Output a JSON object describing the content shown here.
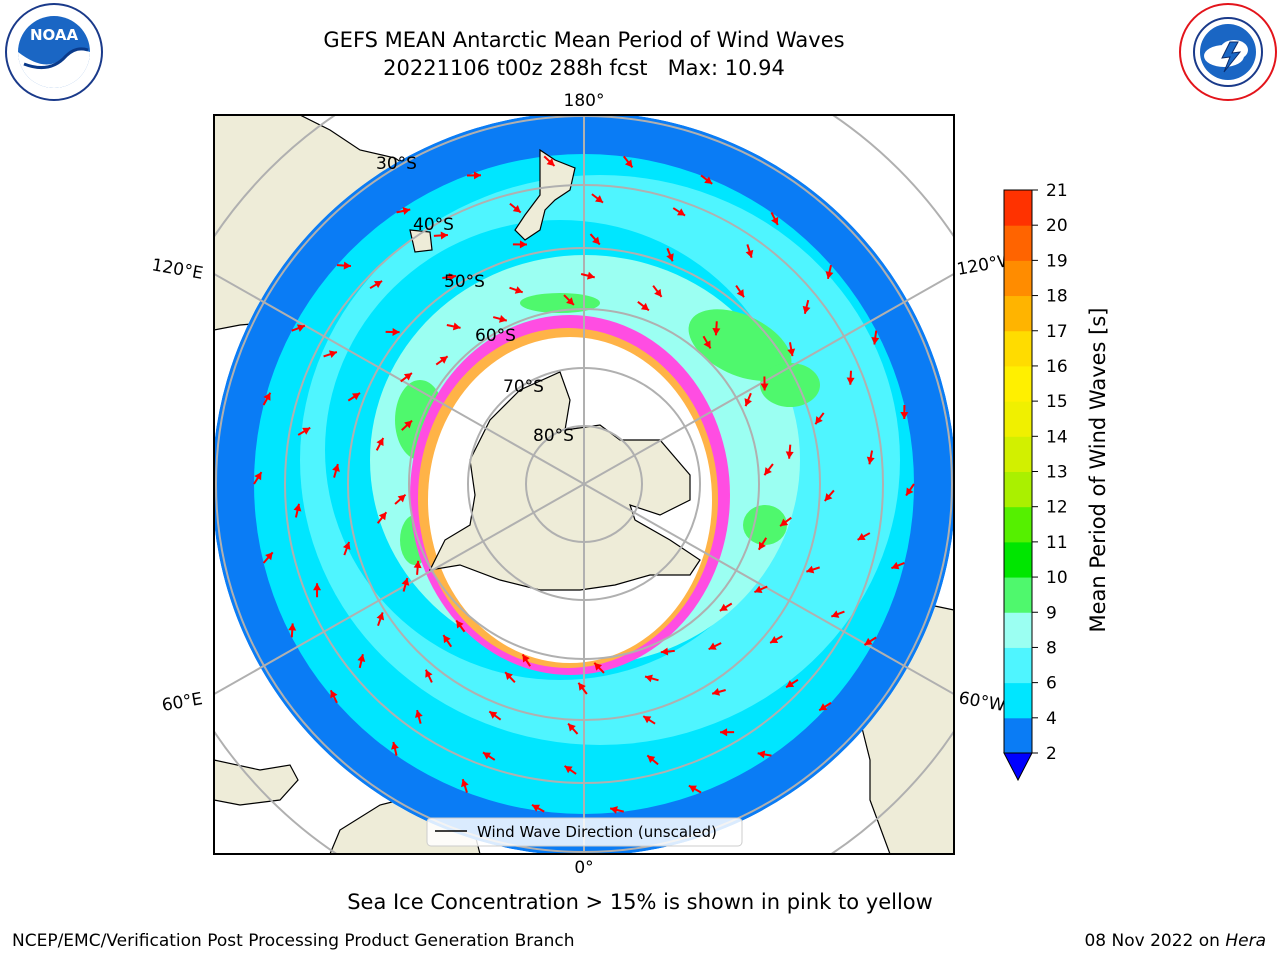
{
  "header": {
    "title_line1": "GEFS MEAN Antarctic Mean Period of Wind Waves",
    "title_line2": "20221106 t00z 288h fcst   Max: 10.94",
    "noaa_logo_text": "NOAA",
    "noaa_logo_ring_text": "NATIONAL OCEANIC AND ATMOSPHERIC ADMINISTRATION · U.S. DEPARTMENT OF COMMERCE",
    "nws_logo_ring_text": "NATIONAL WEATHER SERVICE"
  },
  "map": {
    "projection": "south-polar-stereographic",
    "longitude_labels": {
      "top": "180°",
      "upper_left": "120°E",
      "upper_right": "120°W",
      "lower_left": "60°E",
      "lower_right": "60°W",
      "bottom": "0°"
    },
    "latitude_labels": [
      "30°S",
      "40°S",
      "50°S",
      "60°S",
      "70°S",
      "80°S"
    ],
    "legend_label": "Wind Wave Direction (unscaled)",
    "colors": {
      "land": "#eeecd8",
      "open_ocean": "#00e6ff",
      "band_2_4": "#0a7cf5",
      "band_8_9": "#9bfff2",
      "band_9_10": "#4ff86d",
      "sea_ice_edge": "#ff4de2",
      "sea_ice_edge_yellow": "#ffb347",
      "arrows": "#ff0000",
      "gridlines": "#b0b0b0"
    }
  },
  "colorbar": {
    "label": "Mean Period of Wind Waves [s]",
    "ticks": [
      "2",
      "4",
      "6",
      "8",
      "9",
      "10",
      "11",
      "12",
      "13",
      "14",
      "15",
      "16",
      "17",
      "18",
      "19",
      "20",
      "21"
    ],
    "colors": [
      "#0a7cf5",
      "#00e6ff",
      "#4ff5ff",
      "#9bfff2",
      "#4ff86d",
      "#00e600",
      "#55f000",
      "#aaf000",
      "#d2f000",
      "#f0f000",
      "#fff000",
      "#ffdc00",
      "#ffb400",
      "#ff8c00",
      "#ff6400",
      "#ff3200",
      "#ff0000"
    ],
    "extend_color": "#0000ff"
  },
  "footer": {
    "sea_ice_note": "Sea Ice Concentration > 15% is shown in pink to yellow",
    "branch": "NCEP/EMC/Verification Post Processing Product Generation Branch",
    "date": "08 Nov 2022 on",
    "host": "Hera"
  }
}
